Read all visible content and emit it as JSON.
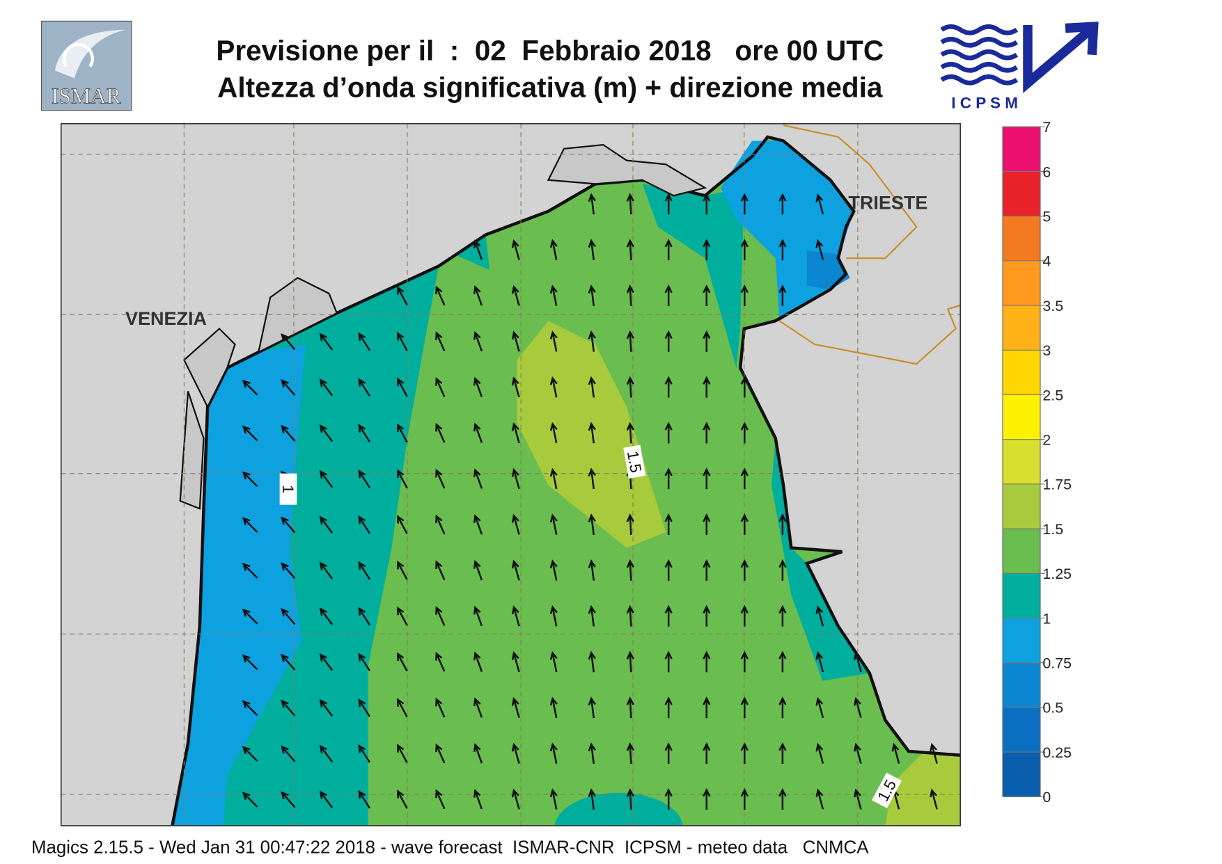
{
  "header": {
    "title": "Previsione per il  :  02  Febbraio 2018   ore 00 UTC",
    "subtitle": "Altezza d’onda significativa (m) + direzione media"
  },
  "logos": {
    "left": "ISMAR",
    "right": "I C P S M"
  },
  "map": {
    "places": [
      "VENEZIA",
      "TRIESTE"
    ],
    "contour_labels": [
      "1",
      "1.5",
      "1.5"
    ]
  },
  "colorbar": {
    "ticks": [
      0,
      0.25,
      0.5,
      0.75,
      1,
      1.25,
      1.5,
      1.75,
      2,
      2.5,
      3,
      3.5,
      4,
      5,
      6,
      7
    ],
    "colors": [
      "#0a5eae",
      "#0a6fc0",
      "#0b86d0",
      "#0ea1e0",
      "#00ae9e",
      "#6abd4f",
      "#a7cb3c",
      "#d8df2e",
      "#fff200",
      "#ffd600",
      "#ffb118",
      "#ff9a1e",
      "#f47a22",
      "#e8222a",
      "#ee1070"
    ]
  },
  "footer": "Magics 2.15.5 - Wed Jan 31 00:47:22 2018 - wave forecast  ISMAR-CNR  ICPSM - meteo data   CNMCA"
}
